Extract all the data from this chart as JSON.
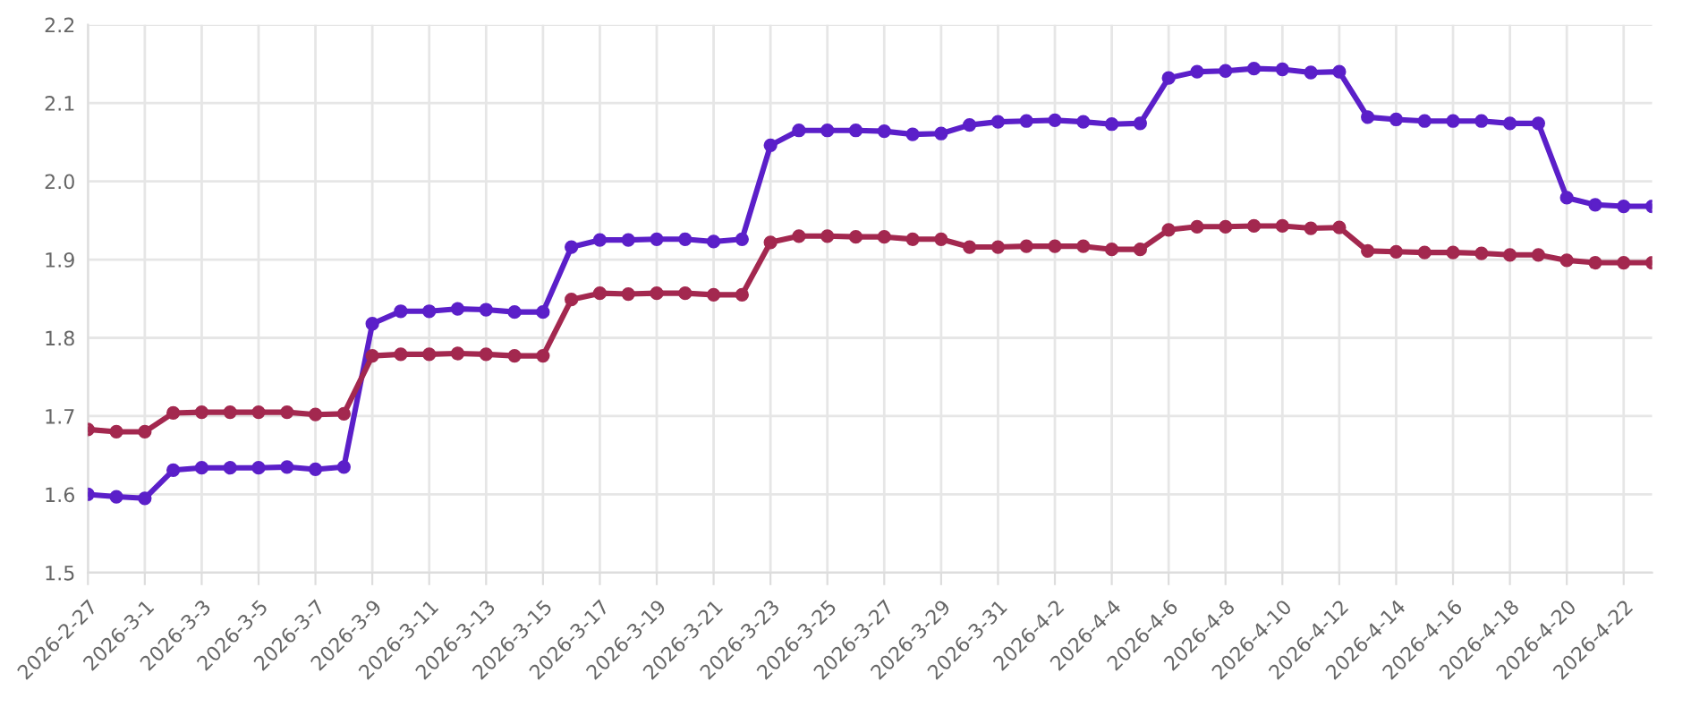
{
  "chart_data": {
    "type": "line",
    "categories": [
      "2026-2-27",
      null,
      "2026-3-1",
      null,
      "2026-3-3",
      null,
      "2026-3-5",
      null,
      "2026-3-7",
      null,
      "2026-3-9",
      null,
      "2026-3-11",
      null,
      "2026-3-13",
      null,
      "2026-3-15",
      null,
      "2026-3-17",
      null,
      "2026-3-19",
      null,
      "2026-3-21",
      null,
      "2026-3-23",
      null,
      "2026-3-25",
      null,
      "2026-3-27",
      null,
      "2026-3-29",
      null,
      "2026-3-31",
      null,
      "2026-4-2",
      null,
      "2026-4-4",
      null,
      "2026-4-6",
      null,
      "2026-4-8",
      null,
      "2026-4-10",
      null,
      "2026-4-12",
      null,
      "2026-4-14",
      null,
      "2026-4-16",
      null,
      "2026-4-18",
      null,
      "2026-4-20",
      null,
      "2026-4-22",
      null
    ],
    "series": [
      {
        "color": "#5b1fc9",
        "values": [
          1.6,
          1.597,
          1.595,
          1.631,
          1.634,
          1.634,
          1.634,
          1.635,
          1.632,
          1.635,
          1.818,
          1.834,
          1.834,
          1.837,
          1.836,
          1.833,
          1.833,
          1.916,
          1.925,
          1.925,
          1.926,
          1.926,
          1.923,
          1.926,
          2.046,
          2.065,
          2.065,
          2.065,
          2.064,
          2.06,
          2.061,
          2.072,
          2.076,
          2.077,
          2.078,
          2.076,
          2.073,
          2.074,
          2.132,
          2.14,
          2.141,
          2.144,
          2.143,
          2.139,
          2.14,
          2.082,
          2.079,
          2.077,
          2.077,
          2.077,
          2.074,
          2.074,
          1.979,
          1.97,
          1.968,
          1.968
        ]
      },
      {
        "color": "#a3284f",
        "values": [
          1.683,
          1.68,
          1.68,
          1.704,
          1.705,
          1.705,
          1.705,
          1.705,
          1.702,
          1.703,
          1.777,
          1.779,
          1.779,
          1.78,
          1.779,
          1.777,
          1.777,
          1.849,
          1.857,
          1.856,
          1.857,
          1.857,
          1.855,
          1.855,
          1.922,
          1.93,
          1.93,
          1.929,
          1.929,
          1.926,
          1.926,
          1.916,
          1.916,
          1.917,
          1.917,
          1.917,
          1.913,
          1.913,
          1.938,
          1.942,
          1.942,
          1.943,
          1.943,
          1.94,
          1.941,
          1.911,
          1.91,
          1.909,
          1.909,
          1.908,
          1.906,
          1.906,
          1.899,
          1.896,
          1.896,
          1.896
        ]
      }
    ],
    "ylim": [
      1.5,
      2.2
    ],
    "yticks": [
      1.5,
      1.6,
      1.7,
      1.8,
      1.9,
      {
        "value": 2.0,
        "label": "2.0"
      },
      2.1,
      2.2
    ],
    "grid": true,
    "marker": "circle",
    "line_style": "solid"
  }
}
